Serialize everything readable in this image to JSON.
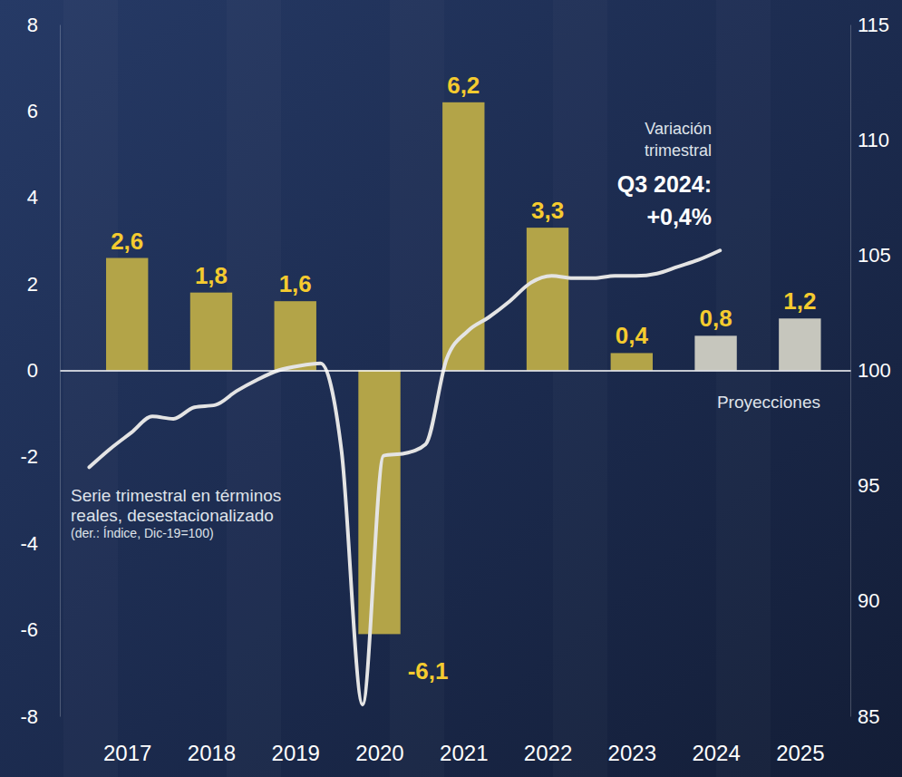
{
  "chart_data": {
    "type": "bar",
    "x": [
      2017,
      2018,
      2019,
      2020,
      2021,
      2022,
      2023,
      2024,
      2025
    ],
    "xlim": [
      2016.2,
      2025.6
    ],
    "xticks": [
      2017,
      2018,
      2019,
      2020,
      2021,
      2022,
      2023,
      2024,
      2025
    ],
    "ylim": [
      -8,
      8
    ],
    "yticks": [
      -8,
      -6,
      -4,
      -2,
      0,
      2,
      4,
      6,
      8
    ],
    "y2lim": [
      85,
      115
    ],
    "y2ticks": [
      85,
      90,
      95,
      100,
      105,
      110,
      115
    ],
    "grid": false,
    "data_labels": true,
    "series": [
      {
        "type": "bar",
        "colors": [
          "#b3a448",
          "#b3a448",
          "#b3a448",
          "#b3a448",
          "#b3a448",
          "#b3a448",
          "#b3a448",
          "#c6c6bd",
          "#c6c6bd"
        ],
        "values": [
          2.6,
          1.8,
          1.6,
          -6.1,
          6.2,
          3.3,
          0.4,
          0.8,
          1.2
        ],
        "value_labels": [
          "2,6",
          "1,8",
          "1,6",
          "-6,1",
          "6,2",
          "3,3",
          "0,4",
          "0,8",
          "1,2"
        ]
      },
      {
        "type": "line",
        "axis": "y2",
        "color": "#e4e4e4",
        "x": [
          2016.55,
          2016.8,
          2017.05,
          2017.3,
          2017.55,
          2017.8,
          2018.05,
          2018.3,
          2018.55,
          2018.8,
          2019.05,
          2019.3,
          2019.55,
          2019.8,
          2020.05,
          2020.3,
          2020.55,
          2020.8,
          2021.05,
          2021.3,
          2021.55,
          2021.8,
          2022.05,
          2022.3,
          2022.55,
          2022.8,
          2023.05,
          2023.3,
          2023.55,
          2023.8,
          2024.05
        ],
        "values": [
          95.8,
          96.6,
          97.3,
          98.0,
          97.9,
          98.4,
          98.5,
          99.1,
          99.6,
          100.0,
          100.2,
          100.3,
          96.5,
          85.5,
          96.3,
          96.4,
          96.8,
          100.5,
          101.7,
          102.3,
          103.0,
          103.8,
          104.1,
          104.0,
          104.0,
          104.1,
          104.1,
          104.2,
          104.5,
          104.8,
          105.2
        ]
      }
    ],
    "annotations": [
      {
        "lines": [
          "Variación",
          "trimestral"
        ]
      },
      {
        "lines": [
          "Q3 2024:",
          "+0,4%"
        ]
      },
      {
        "lines": [
          "Proyecciones"
        ]
      },
      {
        "lines": [
          "Serie trimestral en términos",
          "reales, desestacionalizado",
          "(der.: Índice, Dic-19=100)"
        ]
      }
    ]
  }
}
